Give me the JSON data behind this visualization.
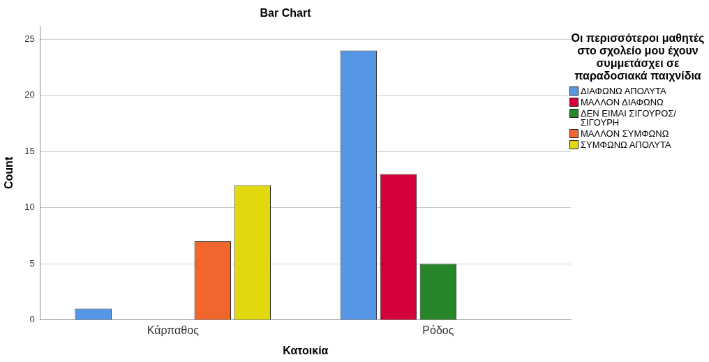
{
  "chart_data": {
    "type": "bar",
    "title": "Bar Chart",
    "xlabel": "Κατοικία",
    "ylabel": "Count",
    "legend_title": "Οι περισσότεροι μαθητές στο σχολείο μου έχουν συμμετάσχει σε παραδοσιακά παιχνίδια",
    "categories": [
      "Κάρπαθος",
      "Ρόδος"
    ],
    "series": [
      {
        "name": "ΔΙΑΦΩΝΩ ΑΠΟΛΥΤΑ",
        "color": "#5596e6",
        "values": [
          1,
          24
        ]
      },
      {
        "name": "ΜΑΛΛΟΝ ΔΙΑΦΩΝΩ",
        "color": "#d3003a",
        "values": [
          null,
          13
        ]
      },
      {
        "name": "ΔΕΝ ΕΙΜΑΙ ΣΙΓΟΥΡΟΣ/ ΣΙΓΟΥΡΗ",
        "color": "#27862a",
        "values": [
          null,
          5
        ]
      },
      {
        "name": "ΜΑΛΛΟΝ ΣΥΜΦΩΝΩ",
        "color": "#f0662c",
        "values": [
          7,
          null
        ]
      },
      {
        "name": "ΣΥΜΦΩΝΩ ΑΠΟΛΥΤΑ",
        "color": "#e2d80e",
        "values": [
          12,
          null
        ]
      }
    ],
    "ylim": [
      0,
      26.2
    ],
    "yticks": [
      0,
      5,
      10,
      15,
      20,
      25
    ],
    "grid": "y",
    "legend": "right"
  }
}
